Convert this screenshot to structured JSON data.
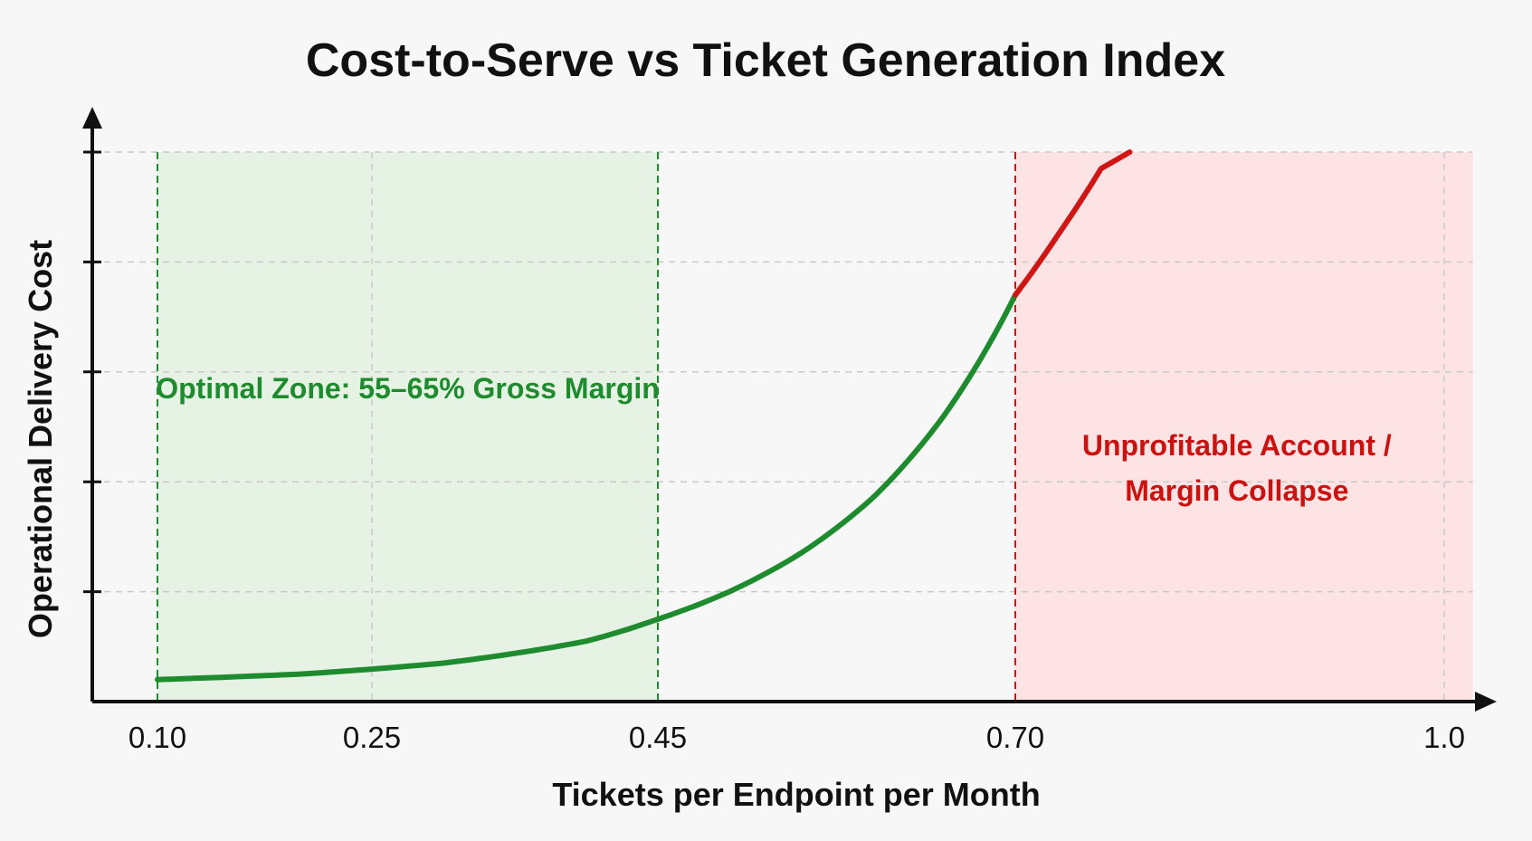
{
  "chart_data": {
    "type": "line",
    "title": "Cost-to-Serve vs Ticket Generation Index",
    "xlabel": "Tickets per Endpoint per Month",
    "ylabel": "Operational Delivery Cost",
    "xlim": [
      0.1,
      1.0
    ],
    "x_tick_labels": [
      {
        "value": 0.1,
        "label": "0.10"
      },
      {
        "value": 0.25,
        "label": "0.25"
      },
      {
        "value": 0.45,
        "label": "0.45"
      },
      {
        "value": 0.7,
        "label": "0.70"
      },
      {
        "value": 1.0,
        "label": "1.0"
      }
    ],
    "y_ticks_labeled": false,
    "grid": true,
    "series": [
      {
        "x": [
          0.1,
          0.2,
          0.3,
          0.4,
          0.45,
          0.5,
          0.55,
          0.6,
          0.65,
          0.7,
          0.73,
          0.76,
          0.78
        ],
        "y": [
          0.04,
          0.05,
          0.07,
          0.11,
          0.15,
          0.2,
          0.27,
          0.37,
          0.52,
          0.74,
          0.85,
          0.97,
          1.0
        ],
        "color_below_threshold": "#1e8c2e",
        "color_above_threshold": "#d01515"
      }
    ],
    "regions": [
      {
        "x_range": [
          0.1,
          0.45
        ],
        "label": "Optimal Zone: 55–65% Gross Margin",
        "color": "#1e8c2e",
        "fill": "#e6f2e3"
      },
      {
        "x_range": [
          0.7,
          1.02
        ],
        "label_lines": [
          "Unprofitable Account /",
          "Margin Collapse"
        ],
        "color": "#cc1111",
        "fill": "#fde3e3"
      }
    ],
    "threshold_x": 0.7
  }
}
